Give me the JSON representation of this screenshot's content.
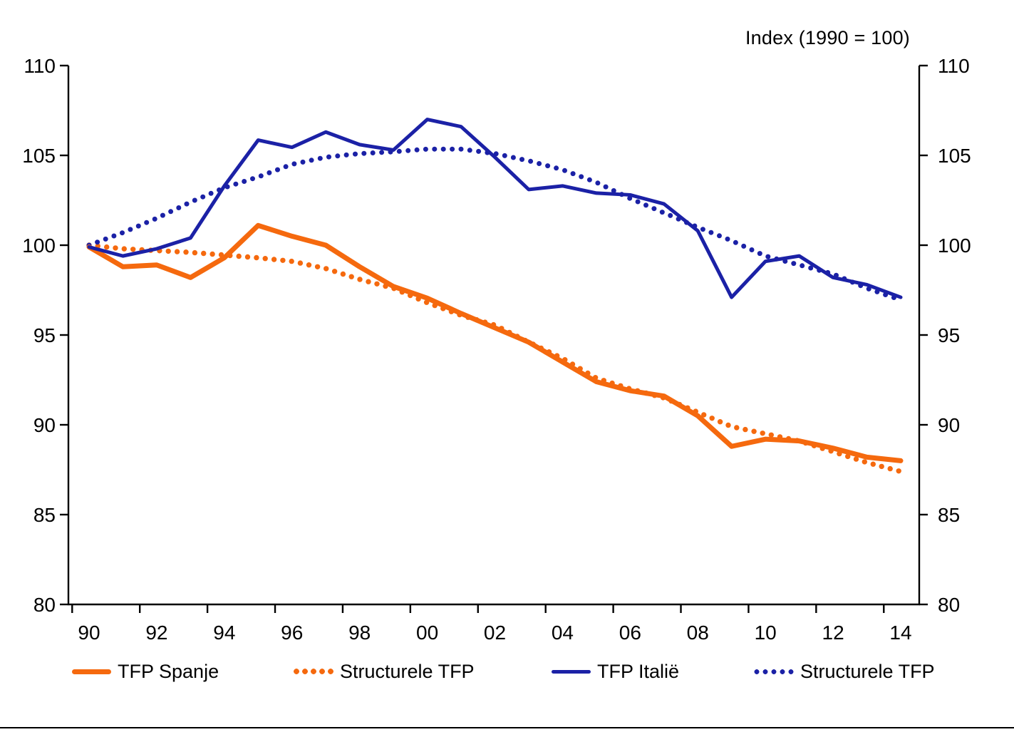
{
  "title": "Index (1990 = 100)",
  "chart_data": {
    "type": "line",
    "x": [
      1990,
      1991,
      1992,
      1993,
      1994,
      1995,
      1996,
      1997,
      1998,
      1999,
      2000,
      2001,
      2002,
      2003,
      2004,
      2005,
      2006,
      2007,
      2008,
      2009,
      2010,
      2011,
      2012,
      2013,
      2014
    ],
    "x_tick_labels": [
      "90",
      "92",
      "94",
      "96",
      "98",
      "00",
      "02",
      "04",
      "06",
      "08",
      "10",
      "12",
      "14"
    ],
    "ylim": [
      80,
      110
    ],
    "yticks": [
      80,
      85,
      90,
      95,
      100,
      105,
      110
    ],
    "grid": false,
    "dual_y_axis": true,
    "legend_position": "bottom",
    "series": [
      {
        "id": "tfp-spanje",
        "name": "TFP Spanje",
        "style": "solid",
        "color": "#F5690E",
        "values": [
          99.9,
          98.8,
          98.9,
          98.2,
          99.3,
          101.1,
          100.5,
          100.0,
          98.8,
          97.7,
          97.05,
          96.2,
          95.4,
          94.6,
          93.5,
          92.4,
          91.9,
          91.6,
          90.5,
          88.8,
          89.2,
          89.1,
          88.7,
          88.2,
          88.0
        ]
      },
      {
        "id": "structurele-tfp-spanje",
        "name": "Structurele TFP",
        "style": "dotted",
        "color": "#F5690E",
        "values": [
          100,
          99.8,
          99.7,
          99.6,
          99.45,
          99.3,
          99.1,
          98.7,
          98.1,
          97.6,
          96.8,
          96.1,
          95.55,
          94.6,
          93.7,
          92.6,
          92.0,
          91.5,
          90.7,
          89.9,
          89.5,
          89.1,
          88.5,
          87.9,
          87.4
        ]
      },
      {
        "id": "tfp-italie",
        "name": "TFP Italië",
        "style": "solid",
        "color": "#1B21A6",
        "values": [
          99.9,
          99.4,
          99.8,
          100.4,
          103.3,
          105.85,
          105.45,
          106.3,
          105.6,
          105.3,
          107.0,
          106.6,
          104.9,
          103.1,
          103.3,
          102.9,
          102.8,
          102.3,
          100.8,
          97.1,
          99.1,
          99.4,
          98.2,
          97.8,
          97.1
        ]
      },
      {
        "id": "structurele-tfp-italie",
        "name": "Structurele TFP",
        "style": "dotted",
        "color": "#1B21A6",
        "values": [
          100,
          100.7,
          101.5,
          102.4,
          103.2,
          103.8,
          104.5,
          104.9,
          105.1,
          105.2,
          105.35,
          105.35,
          105.1,
          104.7,
          104.2,
          103.5,
          102.6,
          101.8,
          101.0,
          100.25,
          99.4,
          98.9,
          98.4,
          97.6,
          96.95
        ]
      }
    ]
  }
}
